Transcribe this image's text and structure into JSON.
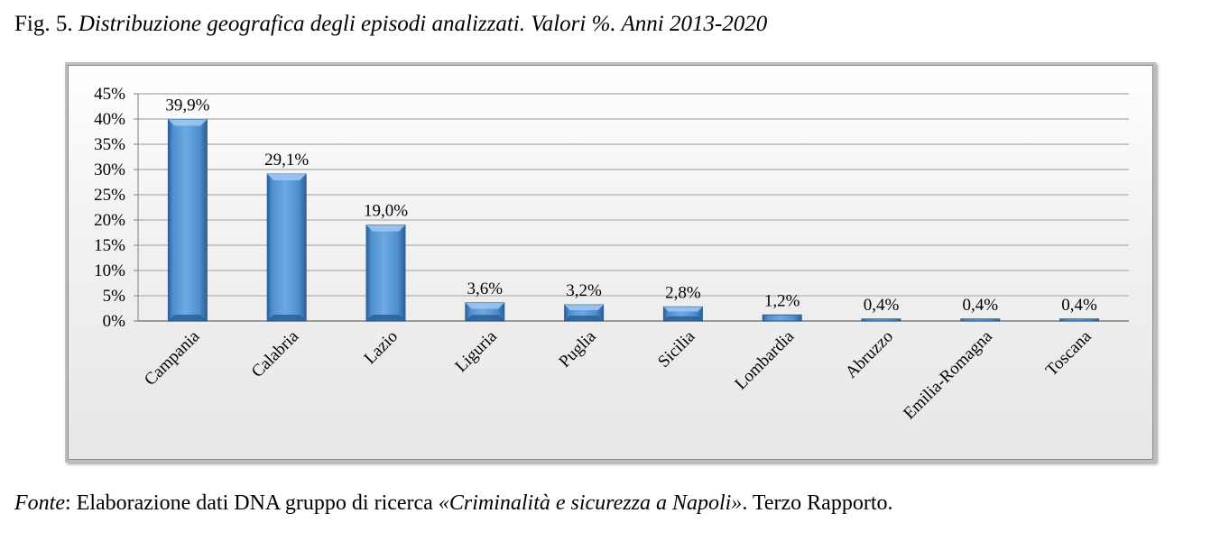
{
  "caption": {
    "prefix": "Fig. 5. ",
    "description": "Distribuzione geografica degli episodi analizzati. Valori %. Anni 2013-2020"
  },
  "source": {
    "label": "Fonte",
    "text": ": Elaborazione dati DNA gruppo di ricerca ",
    "title": "«Criminalità e sicurezza a Napoli»",
    "suffix": ". Terzo Rapporto."
  },
  "colors": {
    "bar": "#4f8fd0",
    "bar_light": "#9cc6f0",
    "bar_dark": "#2d5f96",
    "grid": "#c8c8c8"
  },
  "chart_data": {
    "type": "bar",
    "title": "Distribuzione geografica degli episodi analizzati. Valori %. Anni 2013-2020",
    "xlabel": "",
    "ylabel": "",
    "categories": [
      "Campania",
      "Calabria",
      "Lazio",
      "Liguria",
      "Puglia",
      "Sicilia",
      "Lombardia",
      "Abruzzo",
      "Emilia-Romagna",
      "Toscana"
    ],
    "values": [
      39.9,
      29.1,
      19.0,
      3.6,
      3.2,
      2.8,
      1.2,
      0.4,
      0.4,
      0.4
    ],
    "data_labels": [
      "39,9%",
      "29,1%",
      "19,0%",
      "3,6%",
      "3,2%",
      "2,8%",
      "1,2%",
      "0,4%",
      "0,4%",
      "0,4%"
    ],
    "ylim": [
      0,
      45
    ],
    "yticks": [
      0,
      5,
      10,
      15,
      20,
      25,
      30,
      35,
      40,
      45
    ],
    "ytick_labels": [
      "0%",
      "5%",
      "10%",
      "15%",
      "20%",
      "25%",
      "30%",
      "35%",
      "40%",
      "45%"
    ],
    "grid": true,
    "legend": "none"
  }
}
